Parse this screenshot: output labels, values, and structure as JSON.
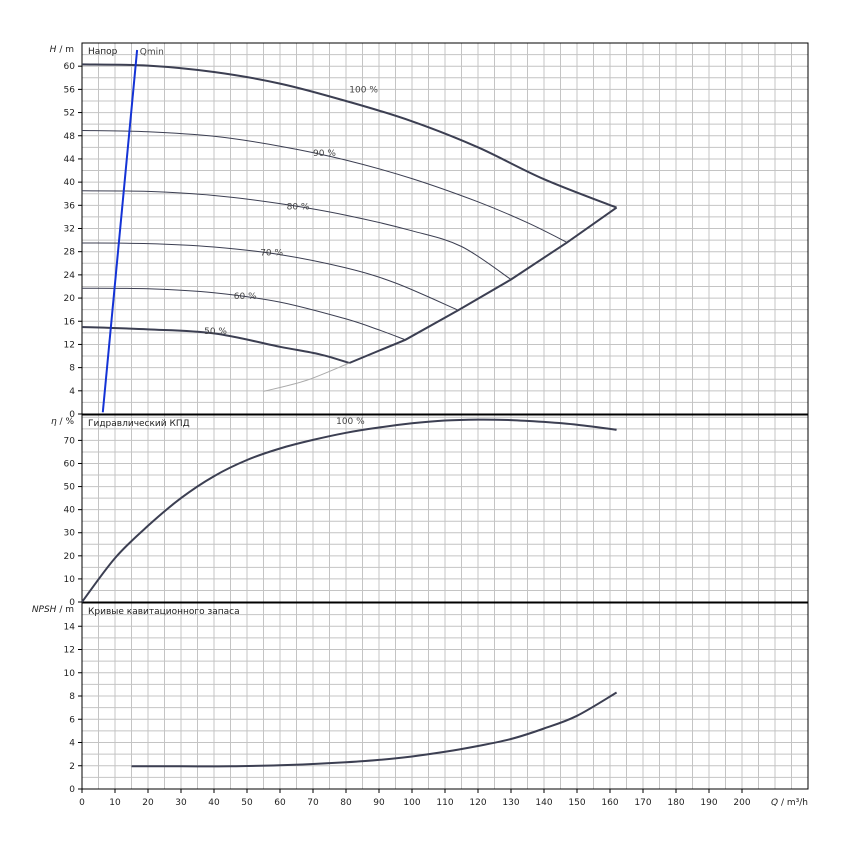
{
  "chart_data": [
    {
      "type": "line",
      "panel": "head",
      "title": "Напор",
      "ylabel": "H",
      "yunit": "m",
      "xlim": [
        0,
        220
      ],
      "ylim": [
        0,
        64
      ],
      "x_ticks": [
        0,
        10,
        20,
        30,
        40,
        50,
        60,
        70,
        80,
        90,
        100,
        110,
        120,
        130,
        140,
        150,
        160,
        170,
        180,
        190,
        200
      ],
      "y_ticks": [
        0,
        4,
        8,
        12,
        16,
        20,
        24,
        28,
        32,
        36,
        40,
        44,
        48,
        52,
        56,
        60
      ],
      "series": [
        {
          "name": "100 %",
          "style": "bold",
          "points": [
            [
              0,
              60.3
            ],
            [
              20,
              60.1
            ],
            [
              40,
              59
            ],
            [
              60,
              57
            ],
            [
              80,
              54
            ],
            [
              100,
              50.5
            ],
            [
              120,
              46
            ],
            [
              140,
              40.5
            ],
            [
              162,
              35.6
            ]
          ]
        },
        {
          "name": "90 %",
          "style": "thin",
          "points": [
            [
              0,
              48.9
            ],
            [
              20,
              48.7
            ],
            [
              40,
              47.9
            ],
            [
              60,
              46.2
            ],
            [
              80,
              43.8
            ],
            [
              100,
              40.6
            ],
            [
              120,
              36.6
            ],
            [
              135,
              33
            ],
            [
              147,
              29.6
            ]
          ]
        },
        {
          "name": "80 %",
          "style": "thin",
          "points": [
            [
              0,
              38.5
            ],
            [
              20,
              38.4
            ],
            [
              40,
              37.7
            ],
            [
              60,
              36.3
            ],
            [
              80,
              34.3
            ],
            [
              100,
              31.6
            ],
            [
              115,
              28.9
            ],
            [
              130,
              23.2
            ]
          ]
        },
        {
          "name": "70 %",
          "style": "thin",
          "points": [
            [
              0,
              29.5
            ],
            [
              20,
              29.4
            ],
            [
              40,
              28.8
            ],
            [
              60,
              27.5
            ],
            [
              80,
              25.2
            ],
            [
              95,
              22.6
            ],
            [
              114,
              17.9
            ]
          ]
        },
        {
          "name": "60 %",
          "style": "thin",
          "points": [
            [
              0,
              21.7
            ],
            [
              20,
              21.6
            ],
            [
              40,
              20.9
            ],
            [
              60,
              19.3
            ],
            [
              80,
              16.4
            ],
            [
              90,
              14.5
            ],
            [
              98,
              12.8
            ]
          ]
        },
        {
          "name": "50 %",
          "style": "bold",
          "points": [
            [
              0,
              15
            ],
            [
              20,
              14.6
            ],
            [
              40,
              13.9
            ],
            [
              60,
              11.6
            ],
            [
              72,
              10.3
            ],
            [
              81,
              8.8
            ]
          ]
        },
        {
          "name": "",
          "style": "envelope",
          "points": [
            [
              81,
              8.8
            ],
            [
              98,
              12.8
            ],
            [
              114,
              17.9
            ],
            [
              130,
              23.2
            ],
            [
              147,
              29.6
            ],
            [
              162,
              35.6
            ]
          ]
        },
        {
          "name": "",
          "style": "faint",
          "points": [
            [
              55,
              3.9
            ],
            [
              68,
              5.8
            ],
            [
              81,
              8.8
            ]
          ]
        },
        {
          "name": "Qmin",
          "style": "qmin",
          "points": [
            [
              6.3,
              0.3
            ],
            [
              16.7,
              62.8
            ]
          ]
        }
      ],
      "labels": [
        {
          "text": "Qmin",
          "x": 17.5,
          "y": 62
        },
        {
          "text": "100 %",
          "x": 81,
          "y": 55.5
        },
        {
          "text": "90 %",
          "x": 70,
          "y": 44.5
        },
        {
          "text": "80 %",
          "x": 62,
          "y": 35.3
        },
        {
          "text": "70 %",
          "x": 54,
          "y": 27.3
        },
        {
          "text": "60 %",
          "x": 46,
          "y": 19.8
        },
        {
          "text": "50 %",
          "x": 37,
          "y": 13.8
        }
      ]
    },
    {
      "type": "line",
      "panel": "efficiency",
      "title": "Гидравлический КПД",
      "ylabel": "η",
      "yunit": "%",
      "xlim": [
        0,
        220
      ],
      "ylim": [
        0,
        81
      ],
      "x_ticks": [
        0,
        10,
        20,
        30,
        40,
        50,
        60,
        70,
        80,
        90,
        100,
        110,
        120,
        130,
        140,
        150,
        160,
        170,
        180,
        190,
        200
      ],
      "y_ticks": [
        0,
        10,
        20,
        30,
        40,
        50,
        60,
        70
      ],
      "series": [
        {
          "name": "100 %",
          "style": "bold",
          "points": [
            [
              0,
              0
            ],
            [
              10,
              19
            ],
            [
              20,
              33
            ],
            [
              30,
              45
            ],
            [
              40,
              54.5
            ],
            [
              50,
              61.5
            ],
            [
              60,
              66.5
            ],
            [
              70,
              70.2
            ],
            [
              80,
              73.3
            ],
            [
              90,
              75.6
            ],
            [
              100,
              77.4
            ],
            [
              110,
              78.6
            ],
            [
              120,
              79
            ],
            [
              130,
              78.8
            ],
            [
              140,
              78
            ],
            [
              150,
              76.8
            ],
            [
              162,
              74.6
            ]
          ]
        }
      ],
      "labels": [
        {
          "text": "100 %",
          "x": 77,
          "y": 77
        }
      ]
    },
    {
      "type": "line",
      "panel": "npsh",
      "title": "Кривые кавитационного запаса",
      "ylabel": "NPSH",
      "yunit": "m",
      "xlabel": "Q",
      "xunit": "m³/h",
      "xlim": [
        0,
        220
      ],
      "ylim": [
        0,
        16
      ],
      "x_ticks": [
        0,
        10,
        20,
        30,
        40,
        50,
        60,
        70,
        80,
        90,
        100,
        110,
        120,
        130,
        140,
        150,
        160,
        170,
        180,
        190,
        200
      ],
      "y_ticks": [
        0,
        2,
        4,
        6,
        8,
        10,
        12,
        14
      ],
      "series": [
        {
          "name": "",
          "style": "bold",
          "points": [
            [
              15,
              1.95
            ],
            [
              30,
              1.95
            ],
            [
              45,
              1.95
            ],
            [
              60,
              2.05
            ],
            [
              70,
              2.15
            ],
            [
              80,
              2.3
            ],
            [
              90,
              2.5
            ],
            [
              100,
              2.8
            ],
            [
              110,
              3.2
            ],
            [
              120,
              3.7
            ],
            [
              130,
              4.3
            ],
            [
              140,
              5.2
            ],
            [
              150,
              6.3
            ],
            [
              162,
              8.3
            ]
          ]
        }
      ],
      "labels": []
    }
  ]
}
